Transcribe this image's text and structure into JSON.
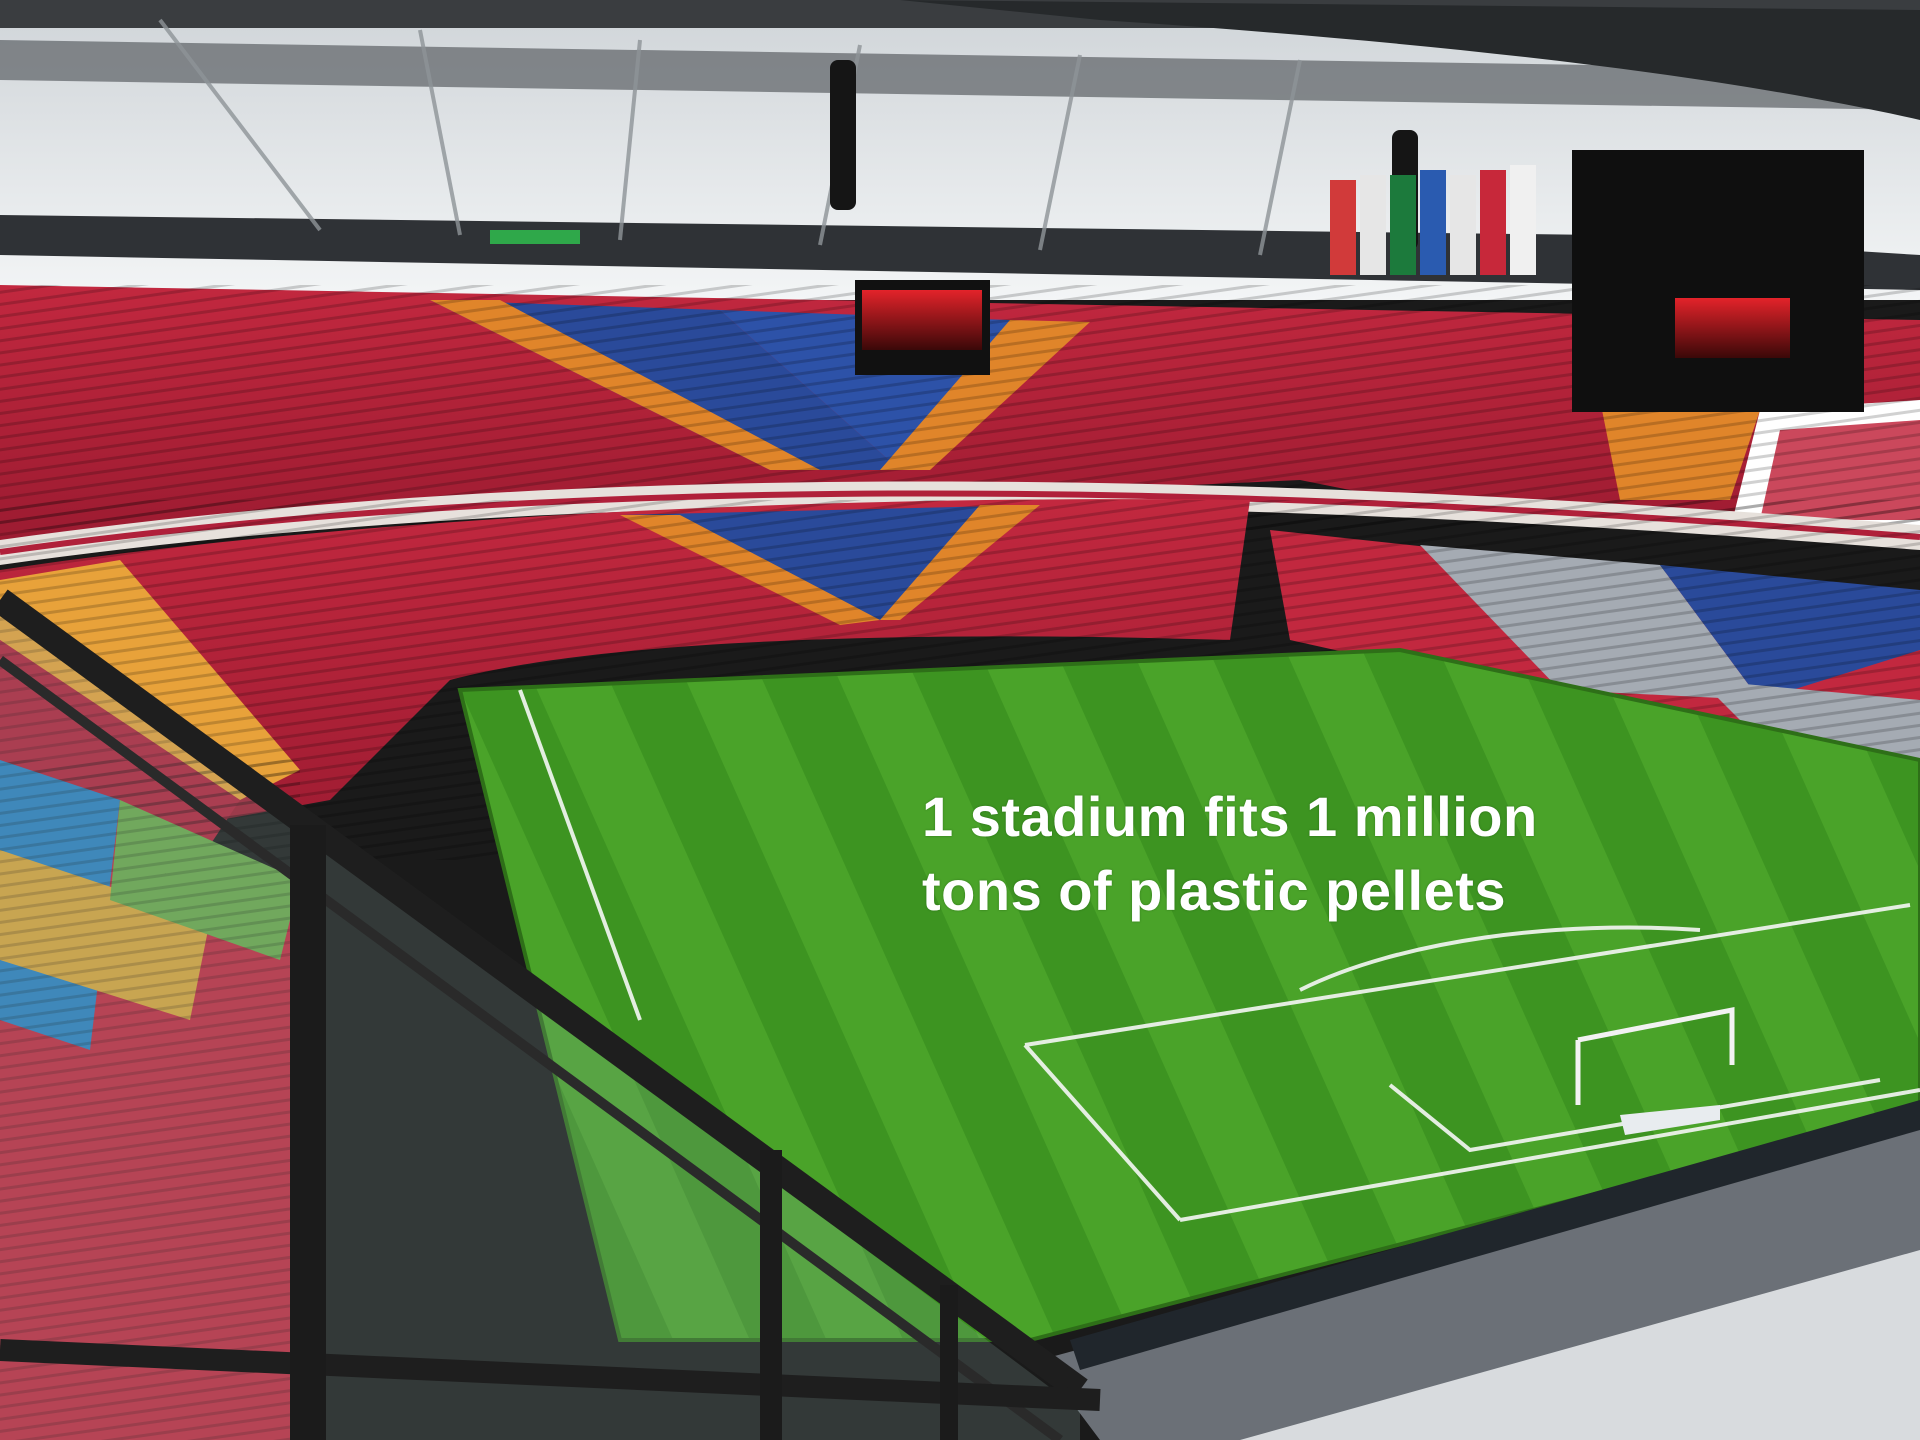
{
  "caption": {
    "line1": "1 stadium fits 1 million",
    "line2": "tons of plastic pellets"
  },
  "colors": {
    "pitch_light": "#4fa82a",
    "pitch_dark": "#3a8f1f",
    "seat_red": "#b3203a",
    "seat_blue": "#2a4a9a",
    "seat_orange": "#e0852a",
    "seat_grey": "#9aa0a8",
    "roof": "#e9ecef",
    "screen": "#111111",
    "screen_glow": "#d41e22",
    "caption_text": "#ffffff"
  }
}
